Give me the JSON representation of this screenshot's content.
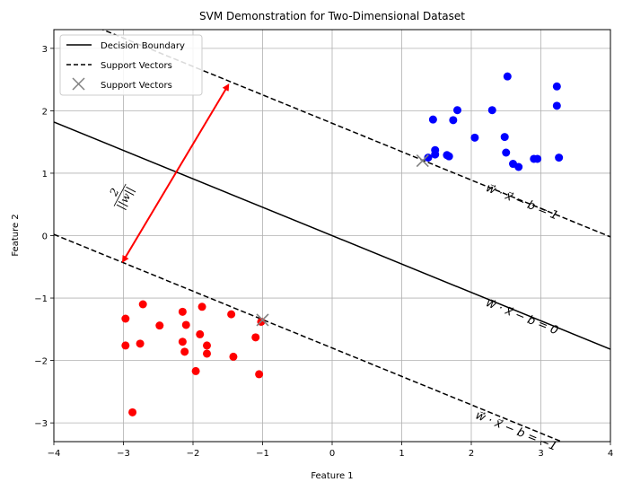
{
  "chart_data": {
    "type": "scatter",
    "title": "SVM Demonstration for Two-Dimensional Dataset",
    "xlabel": "Feature 1",
    "ylabel": "Feature 2",
    "xlim": [
      -4,
      4
    ],
    "ylim": [
      -3.3,
      3.3
    ],
    "xticks": [
      -4,
      -3,
      -2,
      -1,
      0,
      1,
      2,
      3,
      4
    ],
    "yticks": [
      -3,
      -2,
      -1,
      0,
      1,
      2,
      3
    ],
    "grid": true,
    "legend_position": "top-left",
    "legend": [
      {
        "label": "Decision Boundary",
        "style": "solid-line",
        "color": "#000000"
      },
      {
        "label": "Support Vectors",
        "style": "dashed-line",
        "color": "#000000"
      },
      {
        "label": "Support Vectors",
        "style": "x-marker",
        "color": "#808080"
      }
    ],
    "lines": [
      {
        "name": "decision-boundary",
        "slope": -0.455,
        "intercept": 0,
        "style": "solid"
      },
      {
        "name": "margin-upper",
        "slope": -0.455,
        "intercept": 1.8,
        "style": "dashed"
      },
      {
        "name": "margin-lower",
        "slope": -0.455,
        "intercept": -1.8,
        "style": "dashed"
      }
    ],
    "series": [
      {
        "color": "#0000ff",
        "points": [
          [
            1.38,
            1.25
          ],
          [
            1.45,
            1.86
          ],
          [
            1.48,
            1.37
          ],
          [
            1.48,
            1.3
          ],
          [
            1.65,
            1.29
          ],
          [
            1.68,
            1.27
          ],
          [
            1.74,
            1.85
          ],
          [
            1.8,
            2.01
          ],
          [
            2.05,
            1.57
          ],
          [
            2.3,
            2.01
          ],
          [
            2.48,
            1.58
          ],
          [
            2.5,
            1.33
          ],
          [
            2.52,
            2.55
          ],
          [
            2.6,
            1.15
          ],
          [
            2.68,
            1.1
          ],
          [
            2.9,
            1.23
          ],
          [
            2.95,
            1.23
          ],
          [
            3.23,
            2.39
          ],
          [
            3.23,
            2.08
          ],
          [
            3.26,
            1.25
          ]
        ]
      },
      {
        "color": "#ff0000",
        "points": [
          [
            -2.97,
            -1.33
          ],
          [
            -2.97,
            -1.76
          ],
          [
            -2.87,
            -2.83
          ],
          [
            -2.76,
            -1.73
          ],
          [
            -2.72,
            -1.1
          ],
          [
            -2.48,
            -1.44
          ],
          [
            -2.15,
            -1.22
          ],
          [
            -2.15,
            -1.7
          ],
          [
            -2.12,
            -1.86
          ],
          [
            -2.1,
            -1.43
          ],
          [
            -1.96,
            -2.17
          ],
          [
            -1.9,
            -1.58
          ],
          [
            -1.87,
            -1.14
          ],
          [
            -1.8,
            -1.76
          ],
          [
            -1.8,
            -1.89
          ],
          [
            -1.45,
            -1.26
          ],
          [
            -1.42,
            -1.94
          ],
          [
            -1.1,
            -1.63
          ],
          [
            -1.05,
            -2.22
          ],
          [
            -1.02,
            -1.38
          ]
        ]
      }
    ],
    "support_vectors": [
      [
        1.3,
        1.2
      ],
      [
        -1.0,
        -1.35
      ]
    ],
    "margin_arrow": {
      "from": [
        -1.5,
        2.4
      ],
      "to": [
        -3.0,
        -0.4
      ],
      "color": "#ff0000"
    },
    "annotations": [
      {
        "id": "upper",
        "text": "w⃗ · x⃗ − b = 1",
        "x": 2.2,
        "y": 0.72
      },
      {
        "id": "middle",
        "text": "w⃗ · x⃗ − b = 0",
        "x": 2.2,
        "y": -1.12
      },
      {
        "id": "lower",
        "text": "w⃗ · x⃗ − b = −1",
        "x": 2.05,
        "y": -2.92
      }
    ],
    "margin_label": {
      "text": "2/||w||",
      "numerator": "2",
      "denominator": "||w||",
      "x": -3.05,
      "y": 0.65
    }
  }
}
